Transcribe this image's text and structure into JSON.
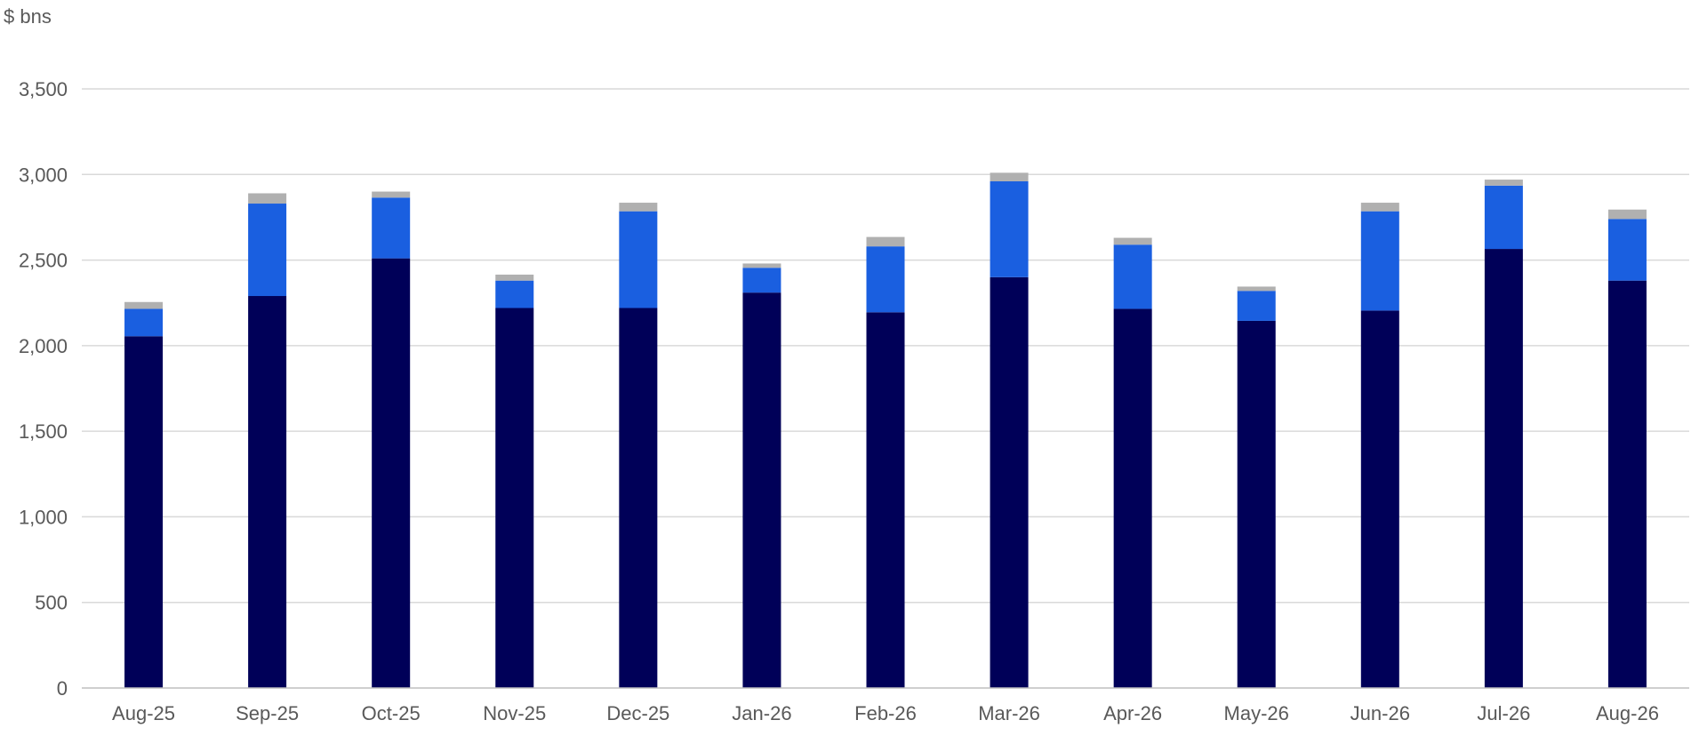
{
  "chart_data": {
    "type": "bar",
    "stacked": true,
    "ylabel": "$ bns",
    "ylim": [
      0,
      3500
    ],
    "yticks": [
      0,
      500,
      1000,
      1500,
      2000,
      2500,
      3000,
      3500
    ],
    "ytick_labels": [
      "0",
      "500",
      "1,000",
      "1,500",
      "2,000",
      "2,500",
      "3,000",
      "3,500"
    ],
    "grid": true,
    "legend": "none",
    "categories": [
      "Aug-25",
      "Sep-25",
      "Oct-25",
      "Nov-25",
      "Dec-25",
      "Jan-26",
      "Feb-26",
      "Mar-26",
      "Apr-26",
      "May-26",
      "Jun-26",
      "Jul-26",
      "Aug-26"
    ],
    "series": [
      {
        "color": "#000058",
        "values": [
          2055,
          2290,
          2510,
          2220,
          2220,
          2310,
          2195,
          2400,
          2215,
          2145,
          2205,
          2565,
          2380
        ]
      },
      {
        "color": "#1a5fe0",
        "values": [
          160,
          540,
          355,
          160,
          565,
          145,
          385,
          560,
          375,
          175,
          580,
          370,
          360
        ]
      },
      {
        "color": "#b0b0b0",
        "values": [
          40,
          60,
          35,
          35,
          50,
          25,
          55,
          50,
          40,
          25,
          50,
          35,
          55
        ]
      }
    ]
  }
}
